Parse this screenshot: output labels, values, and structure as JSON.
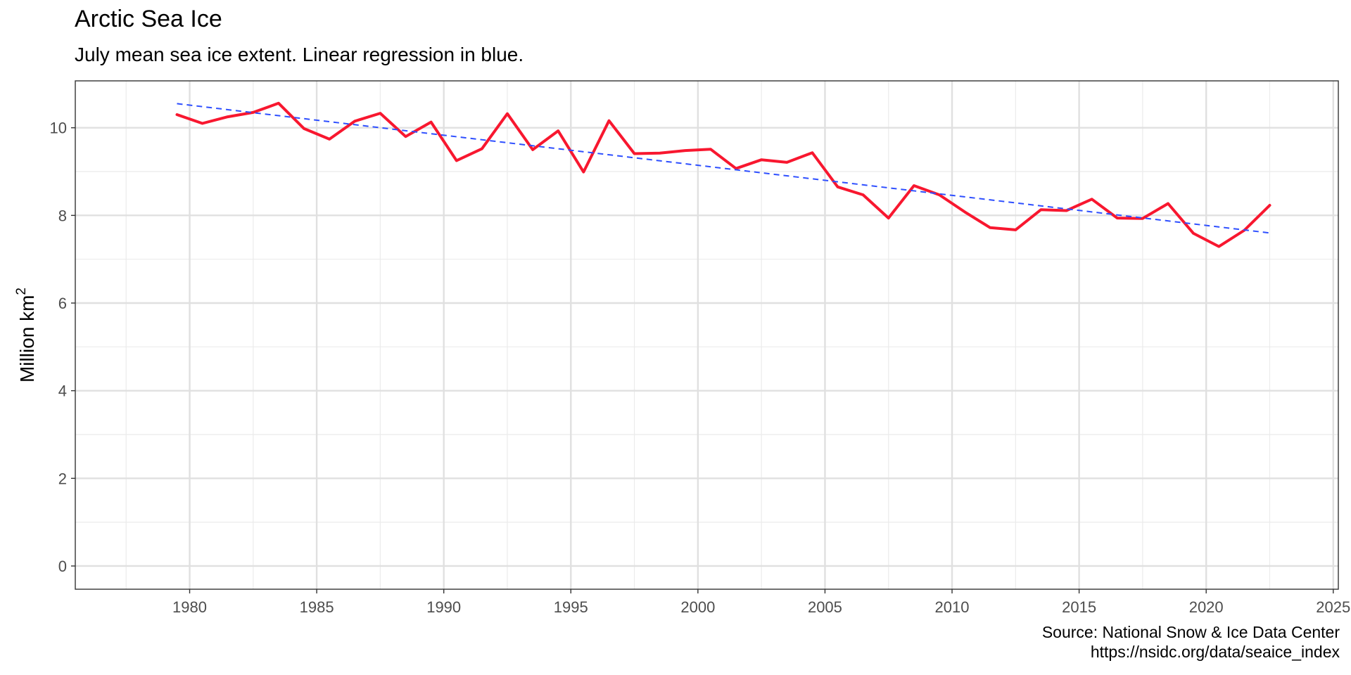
{
  "chart_data": {
    "type": "line",
    "title": "Arctic Sea Ice",
    "subtitle": "July mean sea ice extent. Linear regression in blue.",
    "ylabel": "Million km",
    "ylabel_superscript": "2",
    "caption_lines": [
      "Source: National Snow & Ice Data Center",
      "https://nsidc.org/data/seaice_index"
    ],
    "xlim": [
      1975.5,
      2025.2
    ],
    "ylim": [
      -0.53,
      11.07
    ],
    "x_ticks": [
      1980,
      1985,
      1990,
      1995,
      2000,
      2005,
      2010,
      2015,
      2020,
      2025
    ],
    "x_minor_ticks": [
      1977.5,
      1982.5,
      1987.5,
      1992.5,
      1997.5,
      2002.5,
      2007.5,
      2012.5,
      2017.5,
      2022.5
    ],
    "y_ticks": [
      0,
      2,
      4,
      6,
      8,
      10
    ],
    "y_minor_ticks": [
      1,
      3,
      5,
      7,
      9
    ],
    "grid": true,
    "series": [
      {
        "color": "#F8172F",
        "x": [
          1979.5,
          1980.5,
          1981.5,
          1982.5,
          1983.5,
          1984.5,
          1985.5,
          1986.5,
          1987.5,
          1988.5,
          1989.5,
          1990.5,
          1991.5,
          1992.5,
          1993.5,
          1994.5,
          1995.5,
          1996.5,
          1997.5,
          1998.5,
          1999.5,
          2000.5,
          2001.5,
          2002.5,
          2003.5,
          2004.5,
          2005.5,
          2006.5,
          2007.5,
          2008.5,
          2009.5,
          2010.5,
          2011.5,
          2012.5,
          2013.5,
          2014.5,
          2015.5,
          2016.5,
          2017.5,
          2018.5,
          2019.5,
          2020.5,
          2021.5,
          2022.5
        ],
        "values": [
          10.3,
          10.1,
          10.25,
          10.35,
          10.56,
          9.98,
          9.74,
          10.15,
          10.33,
          9.8,
          10.13,
          9.25,
          9.52,
          10.32,
          9.5,
          9.93,
          8.99,
          10.16,
          9.41,
          9.42,
          9.48,
          9.51,
          9.07,
          9.27,
          9.21,
          9.43,
          8.65,
          8.47,
          7.94,
          8.68,
          8.47,
          8.08,
          7.72,
          7.67,
          8.13,
          8.11,
          8.37,
          7.94,
          7.93,
          8.27,
          7.59,
          7.29,
          7.66,
          8.23
        ]
      },
      {
        "color": "#2E4FFF",
        "style": "dashed",
        "x": [
          1979.5,
          2022.5
        ],
        "values": [
          10.55,
          7.6
        ]
      }
    ]
  }
}
